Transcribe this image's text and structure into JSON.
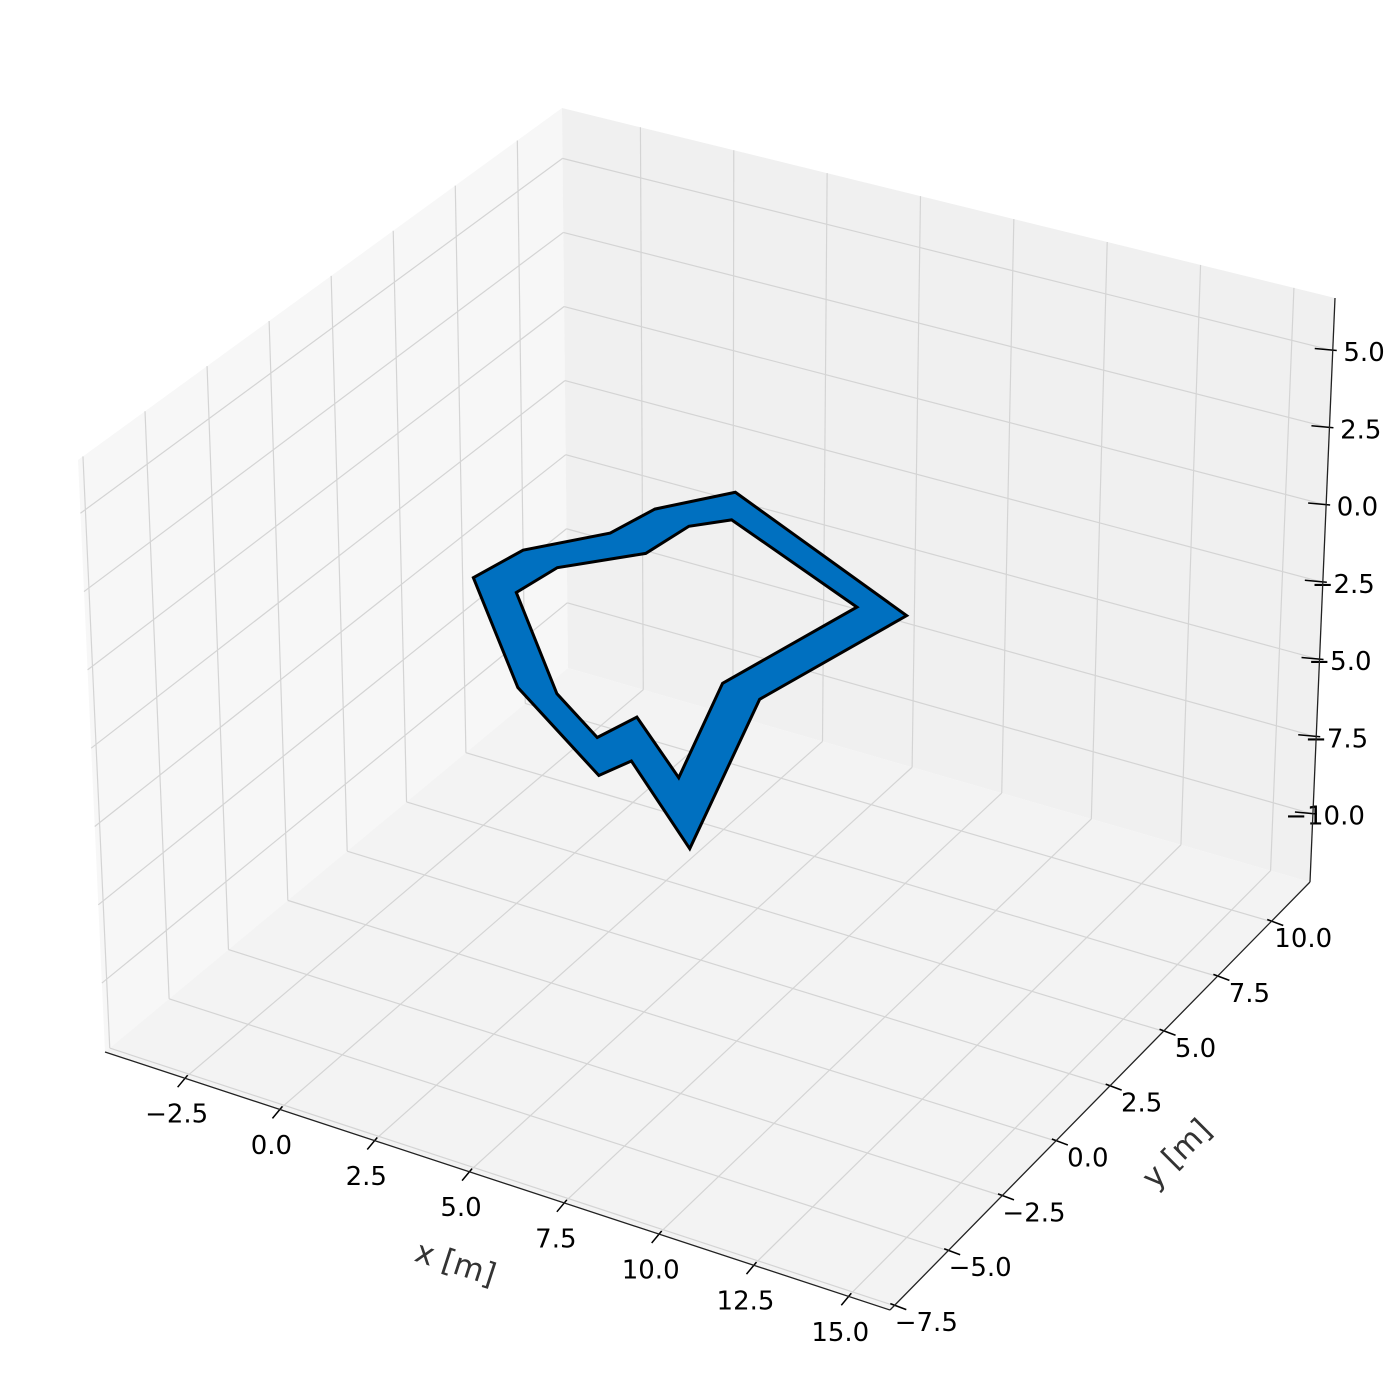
{
  "chart_data": {
    "type": "polygon3d",
    "xlabel": "x [m]",
    "ylabel": "y [m]",
    "xlim": [
      -4.6,
      16.1
    ],
    "ylim": [
      -7.7,
      11.8
    ],
    "zlim": [
      -12.2,
      6.7
    ],
    "xticks": [
      {
        "value": -2.5,
        "label": "−2.5"
      },
      {
        "value": 0,
        "label": "0.0"
      },
      2.5,
      {
        "value": 5,
        "label": "5.0"
      },
      7.5,
      {
        "value": 10,
        "label": "10.0"
      },
      12.5,
      {
        "value": 15,
        "label": "15.0"
      }
    ],
    "yticks": [
      {
        "value": -7.5,
        "label": "−7.5"
      },
      {
        "value": -5,
        "label": "−5.0"
      },
      {
        "value": -2.5,
        "label": "−2.5"
      },
      {
        "value": 0,
        "label": "0.0"
      },
      2.5,
      {
        "value": 5,
        "label": "5.0"
      },
      7.5,
      {
        "value": 10,
        "label": "10.0"
      }
    ],
    "zticks": [
      {
        "value": -10,
        "label": "−10.0"
      },
      {
        "value": -7.5,
        "label": "−7.5"
      },
      {
        "value": -5,
        "label": "−5.0"
      },
      {
        "value": -2.5,
        "label": "−2.5"
      },
      {
        "value": 0,
        "label": "0.0"
      },
      2.5,
      {
        "value": 5,
        "label": "5.0"
      }
    ],
    "grid": true,
    "polygon": {
      "outer": {
        "x": [
          3.6,
          10.0,
          9.0,
          11.0,
          7.9,
          7.6,
          4.0,
          0.5,
          0.8,
          2.1,
          2.4
        ],
        "y": [
          6.3,
          3.4,
          -1.3,
          -7.6,
          -5.0,
          -5.9,
          -3.5,
          0.2,
          1.8,
          3.4,
          4.8
        ]
      },
      "inner": {
        "x": [
          4.2,
          8.8,
          7.9,
          9.2,
          7.0,
          6.7,
          4.9,
          1.7,
          1.9,
          3.3,
          3.5
        ],
        "y": [
          5.2,
          3.2,
          -1.1,
          -5.1,
          -3.3,
          -4.5,
          -3.3,
          0.1,
          1.5,
          3.0,
          4.5
        ]
      },
      "z": 0,
      "color": "#0070c0",
      "edgecolor": "#000000"
    }
  }
}
